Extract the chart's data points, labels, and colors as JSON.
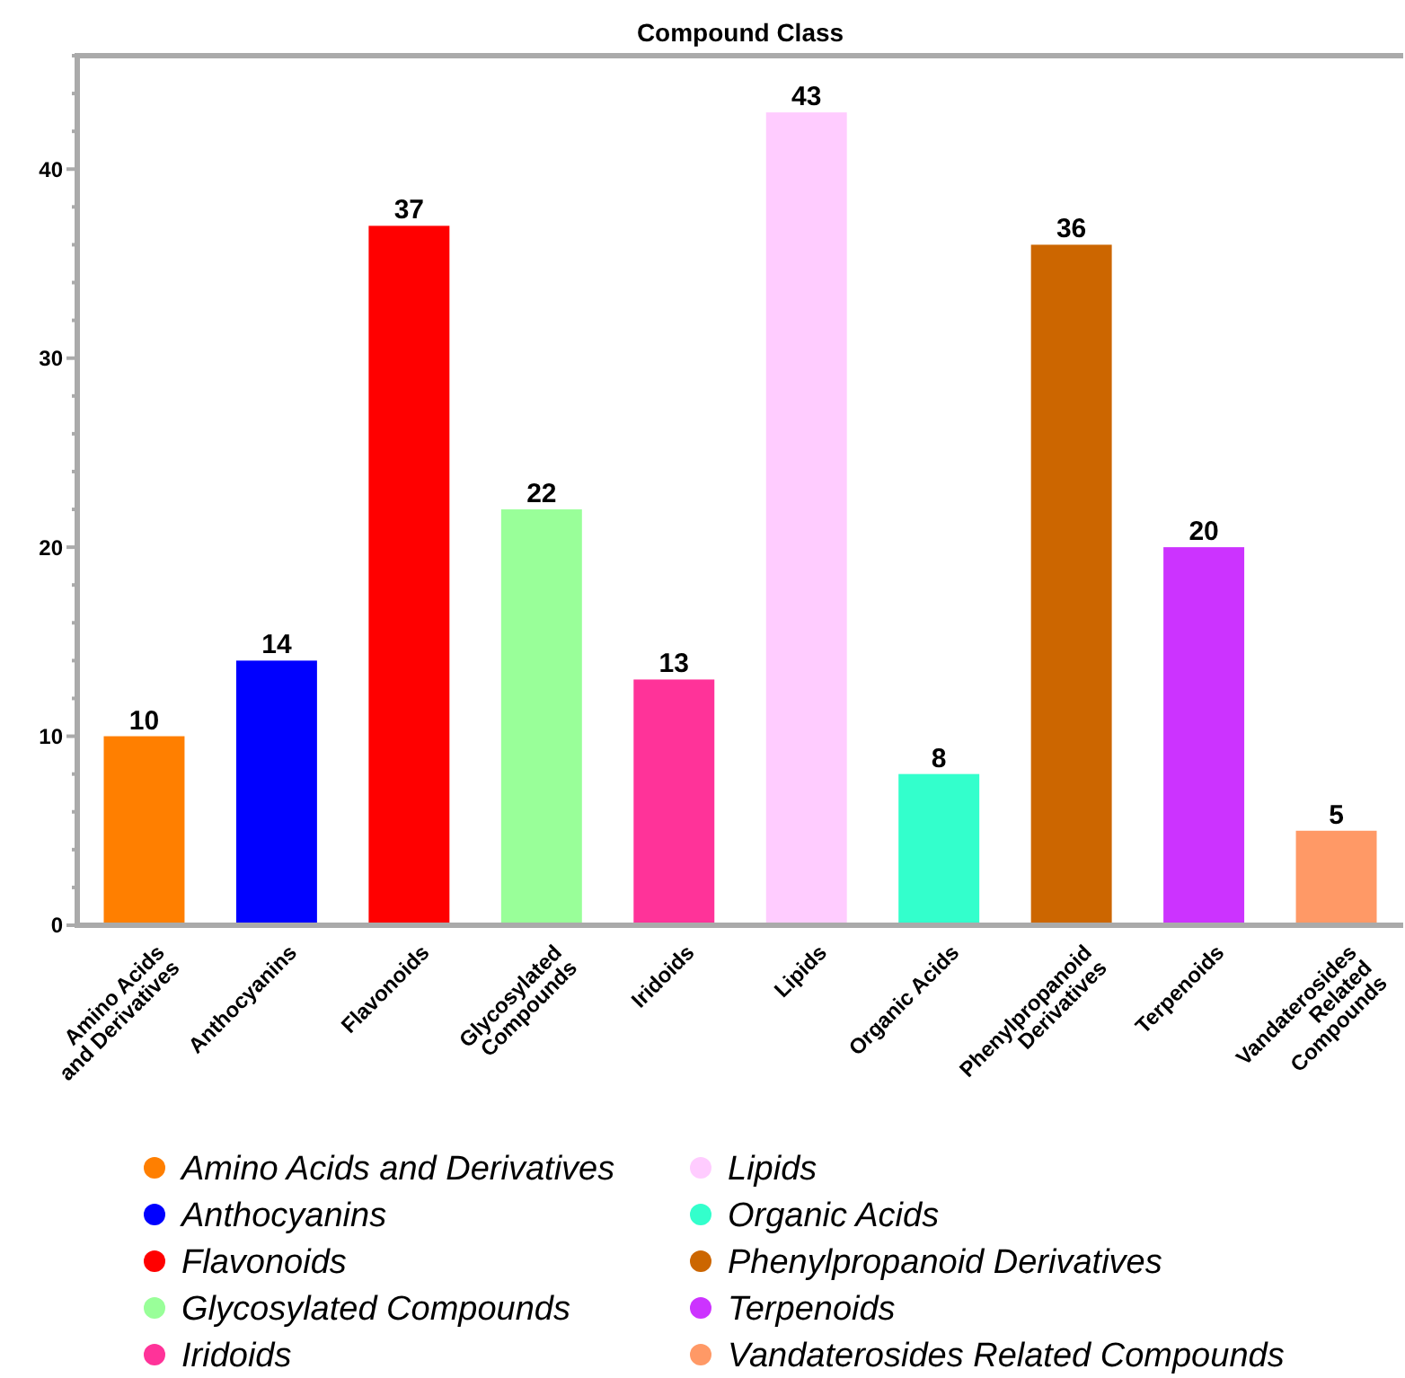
{
  "chart_data": {
    "type": "bar",
    "title": "Compound Class",
    "categories": [
      "Amino Acids and Derivatives",
      "Anthocyanins",
      "Flavonoids",
      "Glycosylated Compounds",
      "Iridoids",
      "Lipids",
      "Organic Acids",
      "Phenylpropanoid Derivatives",
      "Terpenoids",
      "Vandaterosides Related Compounds"
    ],
    "series": [
      {
        "name": "Amino Acids and Derivatives",
        "color": "#ff7f00",
        "values": [
          10,
          null,
          null,
          null,
          null,
          null,
          null,
          null,
          null,
          null
        ]
      },
      {
        "name": "Anthocyanins",
        "color": "#0000ff",
        "values": [
          null,
          14,
          null,
          null,
          null,
          null,
          null,
          null,
          null,
          null
        ]
      },
      {
        "name": "Flavonoids",
        "color": "#ff0000",
        "values": [
          null,
          null,
          37,
          null,
          null,
          null,
          null,
          null,
          null,
          null
        ]
      },
      {
        "name": "Glycosylated Compounds",
        "color": "#99ff99",
        "values": [
          null,
          null,
          null,
          22,
          null,
          null,
          null,
          null,
          null,
          null
        ]
      },
      {
        "name": "Iridoids",
        "color": "#ff3399",
        "values": [
          null,
          null,
          null,
          null,
          13,
          null,
          null,
          null,
          null,
          null
        ]
      },
      {
        "name": "Lipids",
        "color": "#ffccff",
        "values": [
          null,
          null,
          null,
          null,
          null,
          43,
          null,
          null,
          null,
          null
        ]
      },
      {
        "name": "Organic Acids",
        "color": "#33ffcc",
        "values": [
          null,
          null,
          null,
          null,
          null,
          null,
          8,
          null,
          null,
          null
        ]
      },
      {
        "name": "Phenylpropanoid Derivatives",
        "color": "#cc6600",
        "values": [
          null,
          null,
          null,
          null,
          null,
          null,
          null,
          36,
          null,
          null
        ]
      },
      {
        "name": "Terpenoids",
        "color": "#cc33ff",
        "values": [
          null,
          null,
          null,
          null,
          null,
          null,
          null,
          null,
          20,
          null
        ]
      },
      {
        "name": "Vandaterosides Related Compounds",
        "color": "#ff9966",
        "values": [
          null,
          null,
          null,
          null,
          null,
          null,
          null,
          null,
          null,
          5
        ]
      }
    ],
    "data_labels": true,
    "ylim": [
      0,
      46
    ],
    "yticks": [
      0,
      {
        "value": 2,
        "label": null
      },
      {
        "value": 4,
        "label": null
      },
      {
        "value": 6,
        "label": null
      },
      {
        "value": 8,
        "label": null
      },
      10,
      {
        "value": 12,
        "label": null
      },
      {
        "value": 14,
        "label": null
      },
      {
        "value": 16,
        "label": null
      },
      {
        "value": 18,
        "label": null
      },
      20,
      {
        "value": 22,
        "label": null
      },
      {
        "value": 24,
        "label": null
      },
      {
        "value": 26,
        "label": null
      },
      {
        "value": 28,
        "label": null
      },
      30,
      {
        "value": 32,
        "label": null
      },
      {
        "value": 34,
        "label": null
      },
      {
        "value": 36,
        "label": null
      },
      {
        "value": 38,
        "label": null
      },
      40,
      {
        "value": 42,
        "label": null
      },
      {
        "value": 44,
        "label": null
      },
      {
        "value": 46,
        "label": null
      }
    ],
    "legend": "bottom"
  }
}
